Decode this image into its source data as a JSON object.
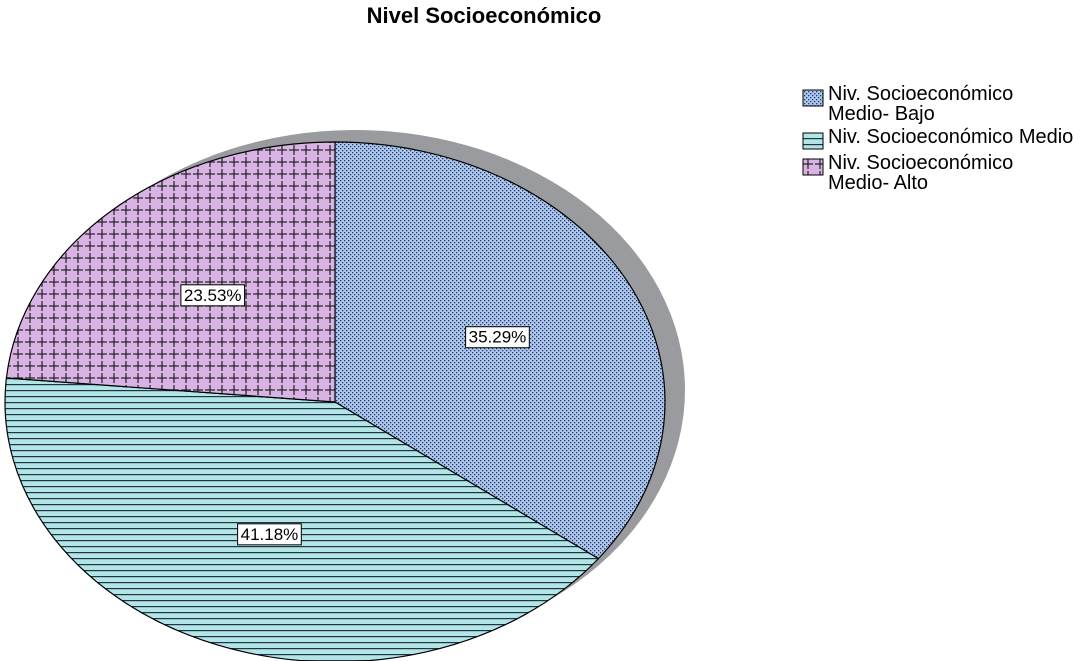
{
  "chart_data": {
    "type": "pie",
    "title": "Nivel Socioeconómico",
    "categories": [
      "Niv. Socioeconómico Medio- Bajo",
      "Niv. Socioeconómico Medio",
      "Niv. Socioeconómico Medio- Alto"
    ],
    "values": [
      35.29,
      41.18,
      23.53
    ],
    "value_labels": [
      "35.29%",
      "41.18%",
      "23.53%"
    ],
    "colors": [
      "#a9c9f2",
      "#b2e6e6",
      "#d9b3e3"
    ],
    "legend": "right"
  }
}
